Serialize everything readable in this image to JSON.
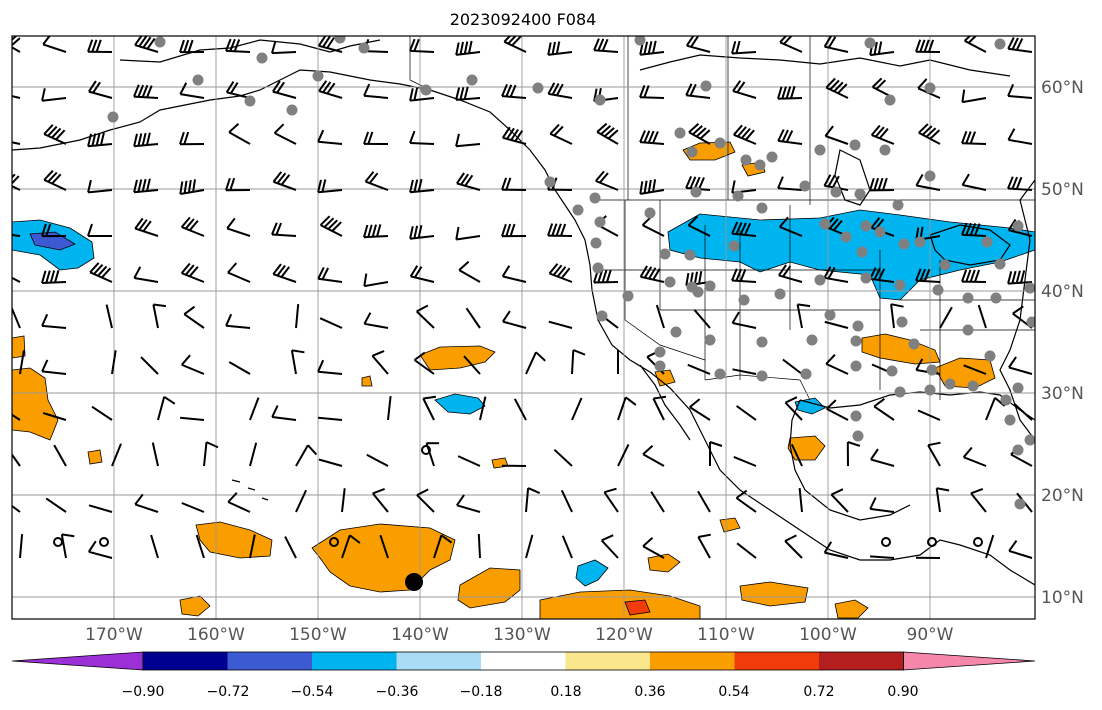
{
  "title": "2023092400 F084",
  "latitude_labels": [
    "60°N",
    "50°N",
    "40°N",
    "30°N",
    "20°N",
    "10°N"
  ],
  "longitude_labels": [
    "170°W",
    "160°W",
    "150°W",
    "140°W",
    "130°W",
    "120°W",
    "110°W",
    "100°W",
    "90°W"
  ],
  "colorbar": {
    "levels": [
      "−0.90",
      "−0.72",
      "−0.54",
      "−0.36",
      "−0.18",
      "0.18",
      "0.36",
      "0.54",
      "0.72",
      "0.90"
    ],
    "colors": [
      "#9b30d6",
      "#000090",
      "#3c5ad2",
      "#00b4f0",
      "#aadcf5",
      "#ffffff",
      "#fae68c",
      "#fa9e00",
      "#f03c0a",
      "#b41e1e",
      "#f587aa"
    ]
  },
  "colors": {
    "land_outline": "#000000",
    "grid": "#999999",
    "station_dot": "#808080",
    "barb": "#000000"
  }
}
